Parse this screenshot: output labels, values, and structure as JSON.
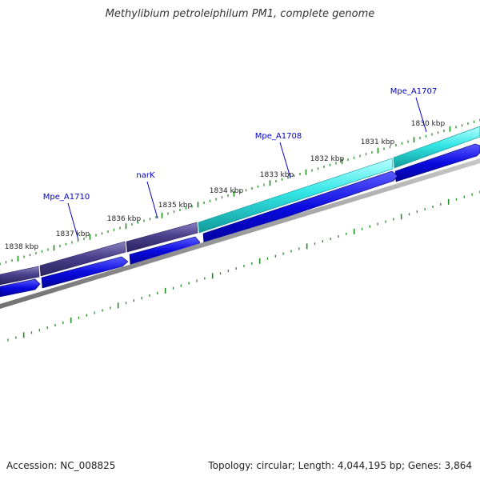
{
  "title": "Methylibium petroleiphilum PM1, complete genome",
  "footer": {
    "accession": "Accession: NC_008825",
    "summary": "Topology: circular; Length: 4,044,195 bp; Genes: 3,864"
  },
  "ticks": [
    {
      "label": "1830 kbp"
    },
    {
      "label": "1831 kbp"
    },
    {
      "label": "1832 kbp"
    },
    {
      "label": "1833 kbp"
    },
    {
      "label": "1834 kbp"
    },
    {
      "label": "1835 kbp"
    },
    {
      "label": "1836 kbp"
    },
    {
      "label": "1837 kbp"
    },
    {
      "label": "1838 kbp"
    }
  ],
  "genes": [
    {
      "name": "Mpe_A1707"
    },
    {
      "name": "Mpe_A1708"
    },
    {
      "name": "narK"
    },
    {
      "name": "Mpe_A1710"
    }
  ],
  "colors": {
    "gene_label": "#0000cc",
    "cyan_feature": "#33e6e6",
    "purple_feature": "#4a3f8a",
    "blue_cds": "#0a0adf",
    "backbone": "#808080",
    "tick_green": "#228b22"
  }
}
